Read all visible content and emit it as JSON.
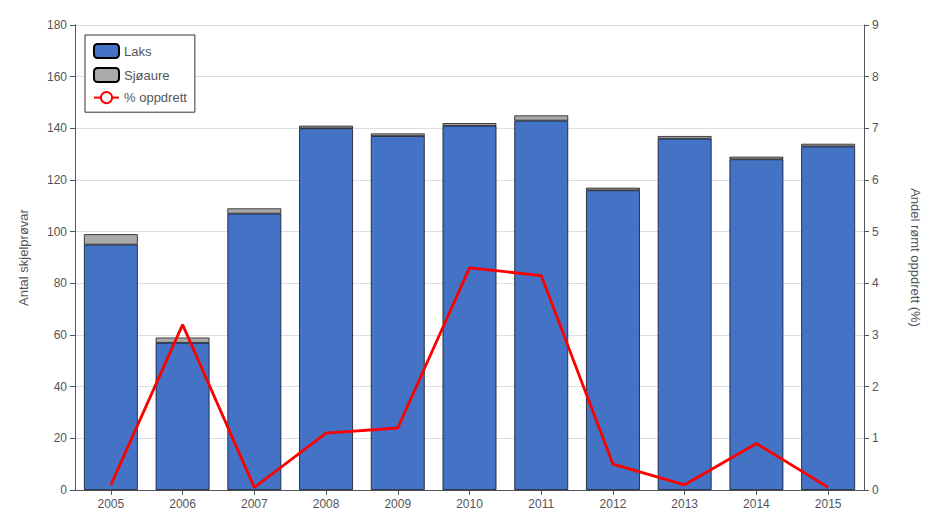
{
  "chart_data": {
    "type": "bar",
    "categories": [
      "2005",
      "2006",
      "2007",
      "2008",
      "2009",
      "2010",
      "2011",
      "2012",
      "2013",
      "2014",
      "2015"
    ],
    "series": [
      {
        "name": "Laks",
        "type": "bar",
        "color": "#4472C4",
        "values": [
          95,
          57,
          107,
          140,
          137,
          141,
          143,
          116,
          136,
          128,
          133
        ]
      },
      {
        "name": "Sjøaure",
        "type": "bar",
        "color": "#AAAAAA",
        "values": [
          4,
          2,
          2,
          1,
          1,
          1,
          2,
          1,
          1,
          1,
          1
        ]
      },
      {
        "name": "% oppdrett",
        "type": "line",
        "axis": "y2",
        "color": "#FF0000",
        "values": [
          0.1,
          3.2,
          0.05,
          1.1,
          1.2,
          4.3,
          4.15,
          0.5,
          0.1,
          0.9,
          0.05
        ]
      }
    ],
    "stacked": true,
    "ylabel": "Antal skjelprøvar",
    "y2label": "Andel rømt oppdrett (%)",
    "ylim": [
      0,
      180
    ],
    "yticks": [
      0,
      20,
      40,
      60,
      80,
      100,
      120,
      140,
      160,
      180
    ],
    "y2lim": [
      0,
      9
    ],
    "y2ticks": [
      0,
      1,
      2,
      3,
      4,
      5,
      6,
      7,
      8,
      9
    ],
    "grid": true,
    "legend": "upper left"
  }
}
